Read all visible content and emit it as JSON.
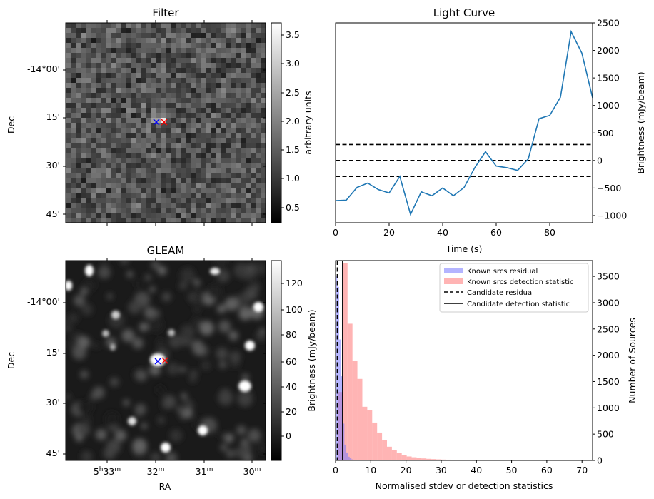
{
  "panels": {
    "filter": {
      "title": "Filter",
      "ylabel": "Dec",
      "dec_ticks": [
        "-14°00'",
        "15'",
        "30'",
        "45'"
      ],
      "colorbar_label": "arbitrary units",
      "colorbar_ticks": [
        "0.5",
        "1.0",
        "1.5",
        "2.0",
        "2.5",
        "3.0",
        "3.5"
      ]
    },
    "gleam": {
      "title": "GLEAM",
      "ylabel": "Dec",
      "xlabel": "RA",
      "dec_ticks": [
        "-14°00'",
        "15'",
        "30'",
        "45'"
      ],
      "ra_ticks": [
        {
          "h": "5",
          "hsup": "h",
          "m": "33",
          "msup": "m"
        },
        {
          "h": "",
          "hsup": "",
          "m": "32",
          "msup": "m"
        },
        {
          "h": "",
          "hsup": "",
          "m": "31",
          "msup": "m"
        },
        {
          "h": "",
          "hsup": "",
          "m": "30",
          "msup": "m"
        }
      ],
      "colorbar_label": "Brightness (mJy/beam)",
      "colorbar_ticks": [
        "0",
        "20",
        "40",
        "60",
        "80",
        "100",
        "120"
      ]
    },
    "markers": {
      "candidate_color": "#0000ff",
      "known_color": "#ff0000"
    }
  },
  "chart_data": [
    {
      "type": "line",
      "title": "Light Curve",
      "xlabel": "Time (s)",
      "ylabel": "Brightness (mJy/beam)",
      "xlim": [
        0,
        96
      ],
      "ylim": [
        -1130,
        2500
      ],
      "xticks": [
        0,
        20,
        40,
        60,
        80
      ],
      "yticks": [
        -1000,
        -500,
        0,
        500,
        1000,
        1500,
        2000,
        2500
      ],
      "series": [
        {
          "color": "#1f77b4",
          "x": [
            0,
            4,
            8,
            12,
            16,
            20,
            24,
            28,
            32,
            36,
            40,
            44,
            48,
            52,
            56,
            60,
            64,
            68,
            72,
            76,
            80,
            84,
            88,
            92,
            96
          ],
          "values": [
            -730,
            -720,
            -490,
            -410,
            -530,
            -590,
            -290,
            -980,
            -570,
            -640,
            -500,
            -640,
            -490,
            -130,
            160,
            -100,
            -130,
            -180,
            30,
            760,
            820,
            1150,
            2340,
            1950,
            1140
          ]
        }
      ],
      "hlines": [
        {
          "y": 0,
          "style": "dashed",
          "color": "#000000"
        },
        {
          "y": 290,
          "style": "dashed",
          "color": "#000000"
        },
        {
          "y": -290,
          "style": "dashed",
          "color": "#000000"
        }
      ]
    },
    {
      "type": "histogram",
      "xlabel": "Normalised stdev or detection statistics",
      "ylabel": "Number of Sources",
      "xlim": [
        0,
        73
      ],
      "ylim": [
        0,
        3800
      ],
      "xticks": [
        0,
        10,
        20,
        30,
        40,
        50,
        60,
        70
      ],
      "yticks": [
        0,
        500,
        1000,
        1500,
        2000,
        2500,
        3000,
        3500
      ],
      "legend_position": "top-right",
      "series": [
        {
          "name": "Known srcs residual",
          "color": "#7777ff",
          "bin_width": 0.5,
          "bin_start": 0,
          "values": [
            3500,
            3300,
            2300,
            1600,
            700,
            300,
            150,
            70,
            40,
            20,
            10,
            5
          ]
        },
        {
          "name": "Known srcs detection statistic",
          "color": "#ff7777",
          "bin_width": 1.4,
          "bin_start": 0.6,
          "values": [
            1300,
            3750,
            2600,
            1900,
            1550,
            1020,
            960,
            720,
            530,
            380,
            260,
            200,
            145,
            105,
            75,
            60,
            48,
            38,
            30,
            25,
            20,
            16,
            14,
            12,
            10,
            9,
            8,
            7,
            6,
            5,
            5,
            4,
            4,
            3,
            3,
            3,
            3,
            2,
            2,
            2,
            2,
            2,
            2,
            2,
            2,
            2,
            2,
            2,
            2
          ]
        }
      ],
      "vlines": [
        {
          "name": "Candidate residual",
          "x": 0.5,
          "style": "dashed",
          "color": "#000000"
        },
        {
          "name": "Candidate detection statistic",
          "x": 2.0,
          "style": "solid",
          "color": "#000000"
        }
      ]
    }
  ]
}
